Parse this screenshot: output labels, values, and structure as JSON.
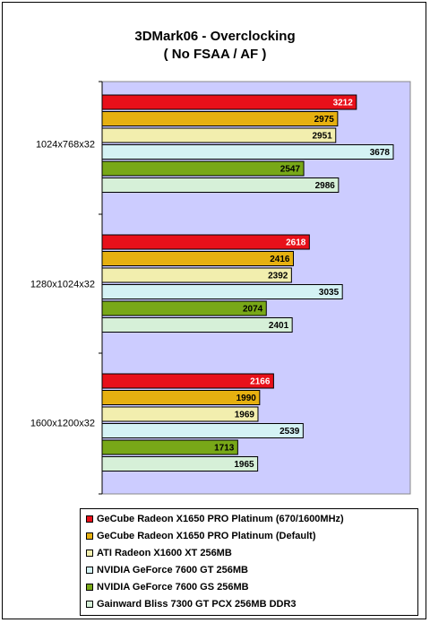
{
  "chart_data": {
    "type": "bar",
    "orientation": "horizontal",
    "title": "3DMark06 - Overclocking",
    "subtitle": "( No FSAA / AF )",
    "categories": [
      "1024x768x32",
      "1280x1024x32",
      "1600x1200x32"
    ],
    "xlim": [
      0,
      4000
    ],
    "grid": false,
    "plot_background": "#ccccff",
    "legend_position": "bottom",
    "series": [
      {
        "name": "GeCube Radeon X1650 PRO Platinum (670/1600MHz)",
        "color": "#e8101a",
        "label_color": "#ffffff",
        "values": [
          3212,
          2618,
          2166
        ]
      },
      {
        "name": "GeCube Radeon X1650 PRO Platinum (Default)",
        "color": "#e6b010",
        "label_color": "#000000",
        "values": [
          2975,
          2416,
          1990
        ]
      },
      {
        "name": "ATI Radeon X1600 XT 256MB",
        "color": "#f2eeae",
        "label_color": "#000000",
        "values": [
          2951,
          2392,
          1969
        ]
      },
      {
        "name": "NVIDIA GeForce 7600 GT 256MB",
        "color": "#d4f2f4",
        "label_color": "#000000",
        "values": [
          3678,
          3035,
          2539
        ]
      },
      {
        "name": "NVIDIA GeForce 7600 GS 256MB",
        "color": "#78a818",
        "label_color": "#000000",
        "values": [
          2547,
          2074,
          1713
        ]
      },
      {
        "name": "Gainward Bliss 7300 GT PCX 256MB DDR3",
        "color": "#d6f0d8",
        "label_color": "#000000",
        "values": [
          2986,
          2401,
          1965
        ]
      }
    ]
  }
}
